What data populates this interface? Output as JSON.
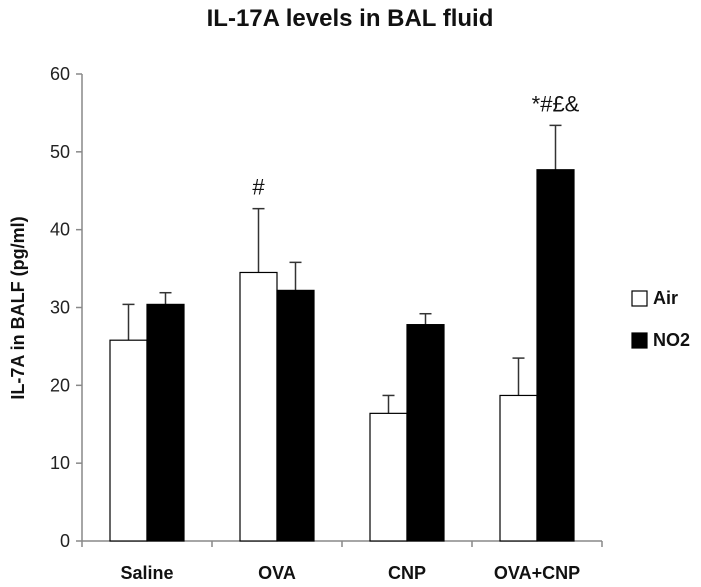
{
  "chart_data": {
    "type": "bar",
    "title": "IL-17A  levels in BAL fluid",
    "xlabel": "",
    "ylabel": "IL-7A in BALF (pg/ml)",
    "ylim": [
      0,
      60
    ],
    "yticks": [
      0,
      10,
      20,
      30,
      40,
      50,
      60
    ],
    "categories": [
      "Saline",
      "OVA",
      "CNP",
      "OVA+CNP"
    ],
    "series": [
      {
        "name": "Air",
        "fill": "#ffffff",
        "values": [
          25.8,
          34.5,
          16.4,
          18.7
        ],
        "errors": [
          4.6,
          8.2,
          2.3,
          4.8
        ]
      },
      {
        "name": "NO2",
        "fill": "#000000",
        "values": [
          30.4,
          32.2,
          27.8,
          47.7
        ],
        "errors": [
          1.5,
          3.6,
          1.4,
          5.7
        ]
      }
    ],
    "annotations": [
      {
        "category": "OVA",
        "series": "Air",
        "text": "#"
      },
      {
        "category": "OVA+CNP",
        "series": "NO2",
        "text": "*#£&"
      }
    ],
    "legend_position": "right",
    "grid": false
  }
}
